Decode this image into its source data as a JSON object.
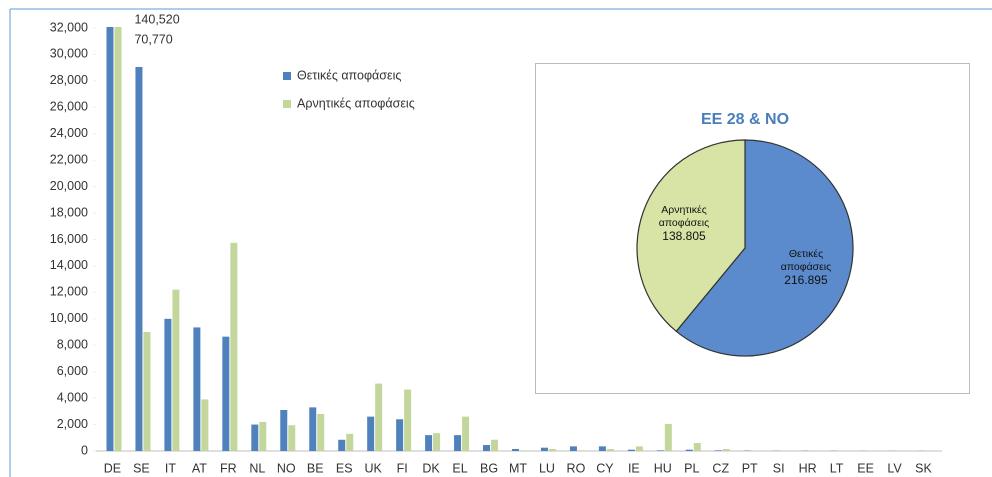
{
  "chart_data": [
    {
      "type": "bar",
      "categories": [
        "DE",
        "SE",
        "IT",
        "AT",
        "FR",
        "NL",
        "NO",
        "BE",
        "ES",
        "UK",
        "FI",
        "DK",
        "EL",
        "BG",
        "MT",
        "LU",
        "RO",
        "CY",
        "IE",
        "HU",
        "PL",
        "CZ",
        "PT",
        "SI",
        "HR",
        "LT",
        "EE",
        "LV",
        "SK"
      ],
      "series": [
        {
          "name": "Θετικές αποφάσεις",
          "color": "#4f81bd",
          "values": [
            140520,
            29050,
            10000,
            9350,
            8650,
            2000,
            3100,
            3300,
            850,
            2600,
            2400,
            1200,
            1200,
            450,
            150,
            250,
            350,
            350,
            100,
            50,
            100,
            50,
            30,
            20,
            20,
            20,
            10,
            10,
            10
          ],
          "value_labels": [
            "140,520",
            null,
            null,
            null,
            null,
            null,
            null,
            null,
            null,
            null,
            null,
            null,
            null,
            null,
            null,
            null,
            null,
            null,
            null,
            null,
            null,
            null,
            null,
            null,
            null,
            null,
            null,
            null,
            null
          ],
          "label_color": "#1f4e79"
        },
        {
          "name": "Αρνητικές αποφάσεις",
          "color": "#c3d69b",
          "values": [
            70770,
            9000,
            12200,
            3900,
            15750,
            2200,
            1950,
            2800,
            1300,
            5100,
            4650,
            1350,
            2600,
            850,
            50,
            150,
            50,
            150,
            350,
            2050,
            600,
            150,
            20,
            10,
            10,
            10,
            10,
            10,
            10
          ],
          "value_labels": [
            "70,770",
            null,
            null,
            null,
            null,
            null,
            null,
            null,
            null,
            null,
            null,
            null,
            null,
            null,
            null,
            null,
            null,
            null,
            null,
            null,
            null,
            null,
            null,
            null,
            null,
            null,
            null,
            null,
            null
          ],
          "label_color": "#8db14a"
        }
      ],
      "ylim": [
        0,
        32000
      ],
      "yticks": [
        0,
        {
          "value": 2000,
          "label": "2,000"
        },
        {
          "value": 4000,
          "label": "4,000"
        },
        {
          "value": 6000,
          "label": "6,000"
        },
        {
          "value": 8000,
          "label": "8,000"
        },
        {
          "value": 10000,
          "label": "10,000"
        },
        {
          "value": 12000,
          "label": "12,000"
        },
        {
          "value": 14000,
          "label": "14,000"
        },
        {
          "value": 16000,
          "label": "16,000"
        },
        {
          "value": 18000,
          "label": "18,000"
        },
        {
          "value": 20000,
          "label": "20,000"
        },
        {
          "value": 22000,
          "label": "22,000"
        },
        {
          "value": 24000,
          "label": "24,000"
        },
        {
          "value": 26000,
          "label": "26,000"
        },
        {
          "value": 28000,
          "label": "28,000"
        },
        {
          "value": 30000,
          "label": "30,000"
        },
        {
          "value": 32000,
          "label": "32,000"
        }
      ],
      "grid": false,
      "legend": "upper center"
    },
    {
      "type": "pie",
      "title": "ΕΕ 28 & ΝΟ",
      "categories": [
        "Θετικές αποφάσεις",
        "Αρνητικές αποφάσεις"
      ],
      "values": [
        216895,
        138805
      ],
      "value_labels": [
        "216.895",
        "138.805"
      ],
      "colors": [
        "#5b8bcd",
        "#d7e4a6"
      ]
    }
  ]
}
